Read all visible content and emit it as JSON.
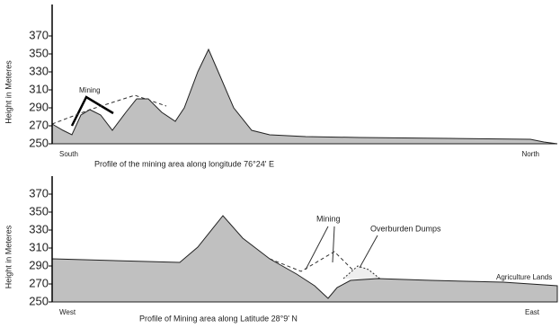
{
  "chart_data": [
    {
      "type": "area",
      "title": "Profile of the mining area along longitude 76°24' E",
      "ylabel": "Height in Meteres",
      "x_start_label": "South",
      "x_end_label": "North",
      "annotations": [
        "Mining"
      ],
      "color": "#c0c0c0",
      "x": [
        0,
        12,
        22,
        32,
        42,
        54,
        67,
        82,
        94,
        107,
        122,
        137,
        147,
        162,
        174,
        187,
        202,
        222,
        242,
        282,
        342,
        442,
        532,
        547,
        562
      ],
      "values": [
        272,
        265,
        260,
        282,
        288,
        282,
        265,
        285,
        300,
        300,
        285,
        275,
        290,
        330,
        355,
        325,
        290,
        265,
        260,
        258,
        257,
        256,
        255,
        252,
        250
      ],
      "xlim": [
        0,
        562
      ],
      "ylim": [
        250,
        405
      ],
      "yticks": [
        250,
        270,
        290,
        310,
        330,
        350,
        370
      ]
    },
    {
      "type": "area",
      "title": "Profile of Mining area along Latitude 28°9' N",
      "ylabel": "Height in Meteres",
      "x_start_label": "West",
      "x_end_label": "East",
      "annotations": [
        "Mining",
        "Overburden Dumps",
        "Agriculture Lands"
      ],
      "color": "#c0c0c0",
      "x": [
        0,
        142,
        162,
        190,
        212,
        242,
        272,
        292,
        307,
        317,
        332,
        362,
        422,
        502,
        562
      ],
      "values": [
        298,
        294,
        311,
        346,
        321,
        298,
        281,
        268,
        254,
        266,
        274,
        276,
        274,
        272,
        268
      ],
      "xlim": [
        0,
        562
      ],
      "ylim": [
        250,
        390
      ],
      "yticks": [
        250,
        270,
        290,
        310,
        330,
        350,
        370
      ]
    }
  ]
}
